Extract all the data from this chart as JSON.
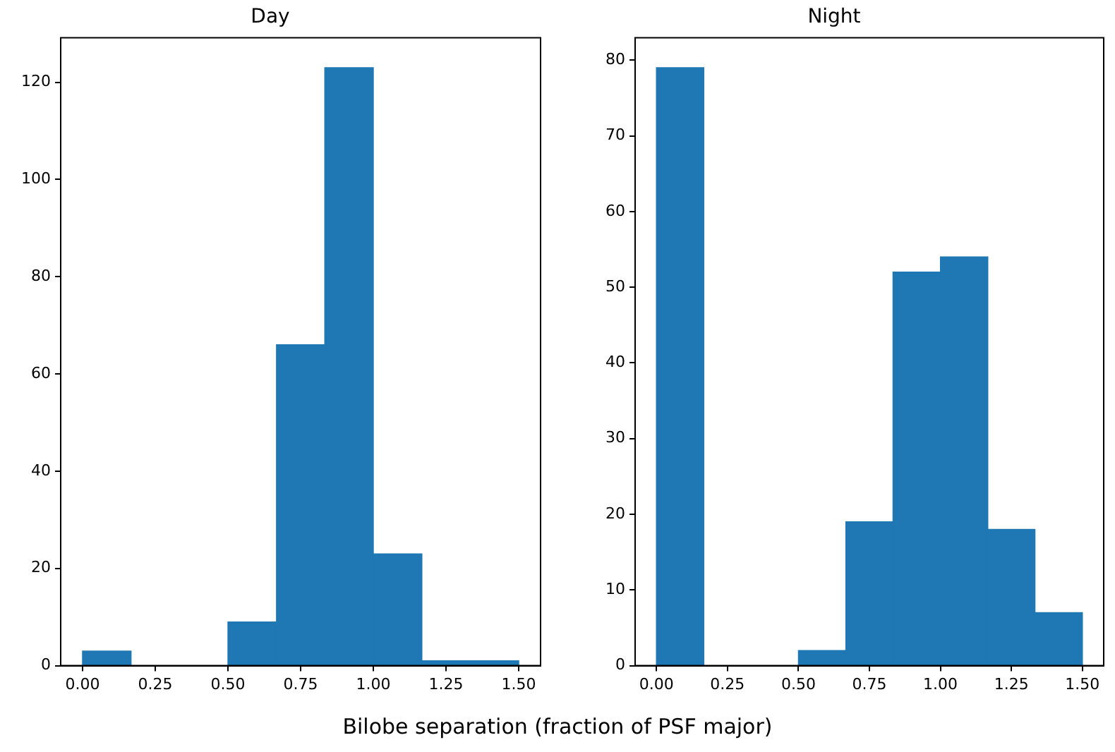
{
  "chart_data": [
    {
      "type": "histogram",
      "title": "Day",
      "bins": [
        0,
        0.167,
        0.333,
        0.5,
        0.667,
        0.833,
        1,
        1.167,
        1.333,
        1.5
      ],
      "values": [
        3,
        0,
        0,
        9,
        66,
        123,
        23,
        1,
        1
      ],
      "color": "#1f77b4",
      "xlim": [
        -0.075,
        1.575
      ],
      "ylim": [
        0,
        129.15
      ],
      "xticks": [
        {
          "value": 0,
          "label": "0.00"
        },
        {
          "value": 0.25,
          "label": "0.25"
        },
        {
          "value": 0.5,
          "label": "0.50"
        },
        {
          "value": 0.75,
          "label": "0.75"
        },
        {
          "value": 1,
          "label": "1.00"
        },
        {
          "value": 1.25,
          "label": "1.25"
        },
        {
          "value": 1.5,
          "label": "1.50"
        }
      ],
      "yticks": [
        0,
        20,
        40,
        60,
        80,
        100,
        120
      ],
      "grid": false,
      "legend": false,
      "annotations": [
        "Bilobe separation (fraction of PSF major)"
      ]
    },
    {
      "type": "histogram",
      "title": "Night",
      "bins": [
        0,
        0.167,
        0.333,
        0.5,
        0.667,
        0.833,
        1,
        1.167,
        1.333,
        1.5
      ],
      "values": [
        79,
        0,
        0,
        2,
        19,
        52,
        54,
        18,
        7
      ],
      "color": "#1f77b4",
      "xlim": [
        -0.075,
        1.575
      ],
      "ylim": [
        0,
        82.95
      ],
      "xticks": [
        {
          "value": 0,
          "label": "0.00"
        },
        {
          "value": 0.25,
          "label": "0.25"
        },
        {
          "value": 0.5,
          "label": "0.50"
        },
        {
          "value": 0.75,
          "label": "0.75"
        },
        {
          "value": 1,
          "label": "1.00"
        },
        {
          "value": 1.25,
          "label": "1.25"
        },
        {
          "value": 1.5,
          "label": "1.50"
        }
      ],
      "yticks": [
        0,
        10,
        20,
        30,
        40,
        50,
        60,
        70,
        80
      ],
      "grid": false,
      "legend": false
    }
  ]
}
